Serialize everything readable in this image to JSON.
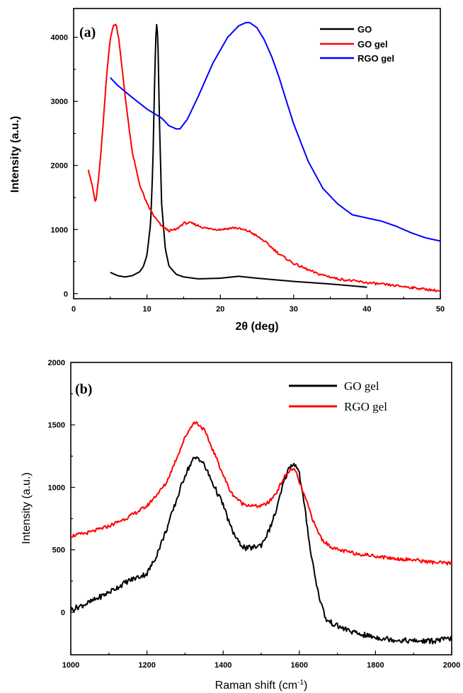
{
  "chart_data": [
    {
      "panel": "(a)",
      "type": "line",
      "xlabel": "2θ (deg)",
      "ylabel": "Intensity (a.u.)",
      "xlim": [
        0,
        50
      ],
      "ylim": [
        -80,
        4450
      ],
      "xticks": [
        0,
        10,
        20,
        30,
        40,
        50
      ],
      "yticks": [
        0,
        1000,
        2000,
        3000,
        4000
      ],
      "legend_position": "top-right",
      "series": [
        {
          "name": "GO",
          "color": "#000000",
          "x": [
            5,
            6,
            7,
            8,
            9,
            9.5,
            10,
            10.5,
            10.8,
            11,
            11.2,
            11.35,
            11.5,
            11.7,
            12,
            12.5,
            13,
            14,
            15,
            17,
            20,
            22.5,
            25,
            30,
            35,
            40
          ],
          "y": [
            330,
            280,
            260,
            280,
            340,
            420,
            600,
            1100,
            2000,
            3100,
            4000,
            4250,
            3900,
            2700,
            1400,
            700,
            430,
            300,
            260,
            230,
            240,
            270,
            240,
            190,
            150,
            100
          ]
        },
        {
          "name": "GO gel",
          "color": "#ff0000",
          "x": [
            2,
            2.5,
            3,
            3.5,
            4,
            4.5,
            5,
            5.5,
            5.8,
            6.2,
            7,
            8,
            9,
            10,
            11,
            12,
            13,
            14,
            15,
            16,
            18,
            20,
            22,
            24,
            26,
            28,
            30,
            33,
            36,
            40,
            45,
            50
          ],
          "y": [
            1950,
            1700,
            1400,
            1900,
            2600,
            3400,
            4000,
            4200,
            4200,
            3950,
            3100,
            2200,
            1700,
            1400,
            1200,
            1050,
            980,
            1000,
            1100,
            1100,
            1020,
            1000,
            1030,
            970,
            820,
            620,
            470,
            320,
            230,
            170,
            110,
            40
          ]
        },
        {
          "name": "RGO gel",
          "color": "#0000ff",
          "x": [
            5,
            6,
            8,
            10,
            12,
            13,
            14,
            14.5,
            15.5,
            17,
            19,
            21,
            22.5,
            23.5,
            24,
            25,
            26,
            27,
            28,
            29,
            30,
            32,
            34,
            36,
            38,
            40,
            42,
            44,
            46,
            48,
            50
          ],
          "y": [
            3370,
            3250,
            3060,
            2880,
            2740,
            2620,
            2570,
            2570,
            2720,
            3080,
            3600,
            4000,
            4180,
            4230,
            4230,
            4150,
            3960,
            3700,
            3380,
            3010,
            2650,
            2060,
            1640,
            1400,
            1230,
            1180,
            1130,
            1050,
            950,
            870,
            820
          ]
        }
      ]
    },
    {
      "panel": "(b)",
      "type": "line",
      "xlabel": "Raman shift (cm",
      "xlabel_sup": "-1",
      "xlabel_end": ")",
      "ylabel": "Intensity (a.u.)",
      "xlim": [
        1000,
        2000
      ],
      "ylim": [
        -340,
        2000
      ],
      "xticks": [
        1000,
        1200,
        1400,
        1600,
        1800,
        2000
      ],
      "yticks": [
        0,
        500,
        1000,
        1500,
        2000
      ],
      "legend_position": "top-right",
      "series": [
        {
          "name": "GO gel",
          "color": "#000000",
          "x": [
            1000,
            1050,
            1100,
            1150,
            1200,
            1220,
            1250,
            1280,
            1300,
            1320,
            1335,
            1350,
            1370,
            1400,
            1420,
            1440,
            1460,
            1480,
            1500,
            1520,
            1540,
            1560,
            1575,
            1590,
            1600,
            1615,
            1630,
            1650,
            1670,
            1700,
            1750,
            1800,
            1850,
            1900,
            1950,
            2000
          ],
          "y": [
            20,
            80,
            160,
            250,
            310,
            420,
            650,
            920,
            1100,
            1220,
            1240,
            1180,
            1050,
            860,
            680,
            560,
            510,
            520,
            540,
            650,
            820,
            1050,
            1170,
            1190,
            1110,
            820,
            480,
            150,
            -60,
            -110,
            -170,
            -200,
            -220,
            -230,
            -230,
            -210
          ]
        },
        {
          "name": "RGO gel",
          "color": "#ff0000",
          "x": [
            1000,
            1050,
            1100,
            1150,
            1200,
            1250,
            1280,
            1300,
            1320,
            1330,
            1350,
            1380,
            1400,
            1420,
            1450,
            1480,
            1500,
            1520,
            1540,
            1560,
            1580,
            1590,
            1600,
            1620,
            1640,
            1660,
            1680,
            1700,
            1750,
            1800,
            1850,
            1900,
            1950,
            2000
          ],
          "y": [
            610,
            640,
            690,
            760,
            850,
            1030,
            1250,
            1400,
            1510,
            1520,
            1460,
            1250,
            1100,
            960,
            870,
            850,
            850,
            880,
            960,
            1080,
            1150,
            1130,
            1040,
            880,
            700,
            580,
            530,
            500,
            470,
            450,
            430,
            420,
            400,
            390
          ]
        }
      ]
    }
  ]
}
